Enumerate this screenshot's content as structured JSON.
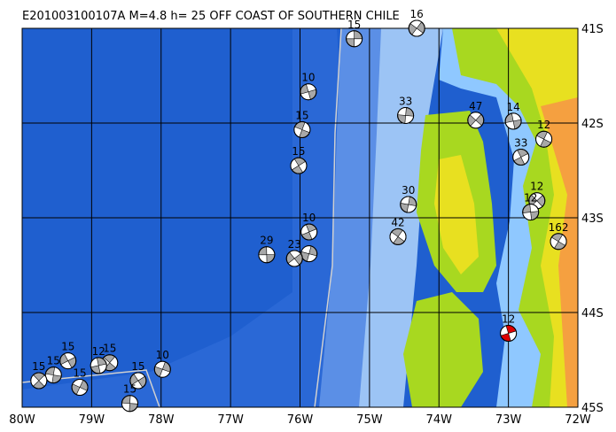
{
  "map": {
    "title": "E201003100107A M=4.8 h= 25 OFF COAST OF SOUTHERN CHILE",
    "xlim": [
      -80,
      -72
    ],
    "ylim": [
      -45,
      -41
    ],
    "xticks": [
      {
        "value": -80,
        "label": "80W"
      },
      {
        "value": -79,
        "label": "79W"
      },
      {
        "value": -78,
        "label": "78W"
      },
      {
        "value": -77,
        "label": "77W"
      },
      {
        "value": -76,
        "label": "76W"
      },
      {
        "value": -75,
        "label": "75W"
      },
      {
        "value": -74,
        "label": "74W"
      },
      {
        "value": -73,
        "label": "73W"
      },
      {
        "value": -72,
        "label": "72W"
      }
    ],
    "yticks": [
      {
        "value": -41,
        "label": "41S"
      },
      {
        "value": -42,
        "label": "42S"
      },
      {
        "value": -43,
        "label": "43S"
      },
      {
        "value": -44,
        "label": "44S"
      },
      {
        "value": -45,
        "label": "45S"
      }
    ],
    "events": [
      {
        "depth": "15",
        "lon": -75.22,
        "lat": -41.11,
        "color": "#a8a8a8"
      },
      {
        "depth": "16",
        "lon": -74.32,
        "lat": -41.0,
        "color": "#a8a8a8"
      },
      {
        "depth": "10",
        "lon": -75.88,
        "lat": -41.67,
        "color": "#a8a8a8"
      },
      {
        "depth": "15",
        "lon": -75.97,
        "lat": -42.07,
        "color": "#a8a8a8"
      },
      {
        "depth": "15",
        "lon": -76.02,
        "lat": -42.45,
        "color": "#a8a8a8"
      },
      {
        "depth": "33",
        "lon": -74.48,
        "lat": -41.92,
        "color": "#a8a8a8"
      },
      {
        "depth": "47",
        "lon": -73.47,
        "lat": -41.97,
        "color": "#a8a8a8"
      },
      {
        "depth": "14",
        "lon": -72.93,
        "lat": -41.98,
        "color": "#a8a8a8"
      },
      {
        "depth": "12",
        "lon": -72.49,
        "lat": -42.17,
        "color": "#a8a8a8"
      },
      {
        "depth": "33",
        "lon": -72.82,
        "lat": -42.36,
        "color": "#a8a8a8"
      },
      {
        "depth": "30",
        "lon": -74.44,
        "lat": -42.86,
        "color": "#a8a8a8"
      },
      {
        "depth": "12",
        "lon": -72.59,
        "lat": -42.82,
        "color": "#a8a8a8"
      },
      {
        "depth": "12",
        "lon": -72.68,
        "lat": -42.94,
        "color": "#a8a8a8"
      },
      {
        "depth": "162",
        "lon": -72.28,
        "lat": -43.25,
        "color": "#a8a8a8"
      },
      {
        "depth": "10",
        "lon": -75.87,
        "lat": -43.15,
        "color": "#a8a8a8"
      },
      {
        "depth": null,
        "lon": -75.87,
        "lat": -43.38,
        "color": "#a8a8a8"
      },
      {
        "depth": "23",
        "lon": -76.08,
        "lat": -43.43,
        "color": "#a8a8a8"
      },
      {
        "depth": "29",
        "lon": -76.48,
        "lat": -43.39,
        "color": "#a8a8a8"
      },
      {
        "depth": "42",
        "lon": -74.59,
        "lat": -43.2,
        "color": "#a8a8a8"
      },
      {
        "depth": "12",
        "lon": -73.0,
        "lat": -44.22,
        "color": "#e00000"
      },
      {
        "depth": "10",
        "lon": -77.98,
        "lat": -44.6,
        "color": "#a8a8a8"
      },
      {
        "depth": "15",
        "lon": -78.33,
        "lat": -44.72,
        "color": "#a8a8a8"
      },
      {
        "depth": "15",
        "lon": -78.45,
        "lat": -44.96,
        "color": "#a8a8a8"
      },
      {
        "depth": "15",
        "lon": -78.74,
        "lat": -44.53,
        "color": "#a8a8a8"
      },
      {
        "depth": "12",
        "lon": -78.9,
        "lat": -44.56,
        "color": "#a8a8a8"
      },
      {
        "depth": "15",
        "lon": -79.17,
        "lat": -44.79,
        "color": "#a8a8a8"
      },
      {
        "depth": "15",
        "lon": -79.34,
        "lat": -44.51,
        "color": "#a8a8a8"
      },
      {
        "depth": "15",
        "lon": -79.55,
        "lat": -44.66,
        "color": "#a8a8a8"
      },
      {
        "depth": "15",
        "lon": -79.76,
        "lat": -44.72,
        "color": "#a8a8a8"
      }
    ]
  }
}
